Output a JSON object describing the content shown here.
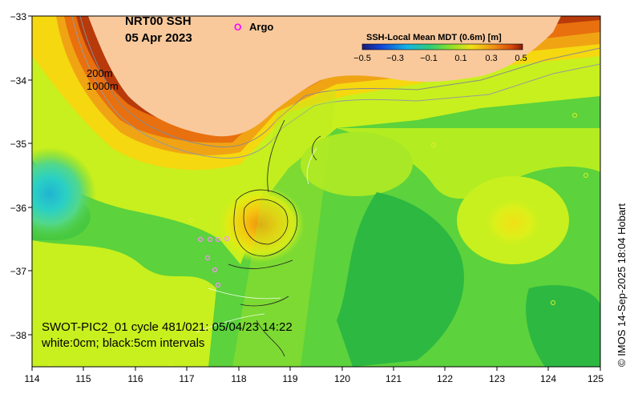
{
  "map": {
    "title_line1": "NRT00 SSH",
    "title_line2": "05 Apr 2023",
    "legend_argo_marker": "O",
    "legend_argo_label": "Argo",
    "depth_label_200": "200m",
    "depth_label_1000": "1000m",
    "swot_line1": "SWOT-PIC2_01 cycle 481/021: 05/04/23 14:22",
    "swot_line2": "white:0cm; black:5cm intervals",
    "credit": "© IMOS 14-Sep-2025 18:04 Hobart",
    "colorbar": {
      "title": "SSH-Local Mean MDT (0.6m) [m]",
      "ticks": [
        "−0.5",
        "−0.3",
        "−0.1",
        "0.1",
        "0.3",
        "0.5"
      ]
    },
    "x_ticks": [
      "114",
      "115",
      "116",
      "117",
      "118",
      "119",
      "120",
      "121",
      "122",
      "123",
      "124",
      "125"
    ],
    "y_ticks": [
      "−33",
      "−34",
      "−35",
      "−36",
      "−37",
      "−38"
    ],
    "colors": {
      "land": "#f9c99c",
      "deep_red": "#b83a0a",
      "orange": "#f08a14",
      "yellow": "#f5d80f",
      "lime": "#c8f01e",
      "green": "#5cd23c",
      "dark_green": "#2db842",
      "cyan": "#24d2c8",
      "argo": "#ff00ff"
    }
  }
}
